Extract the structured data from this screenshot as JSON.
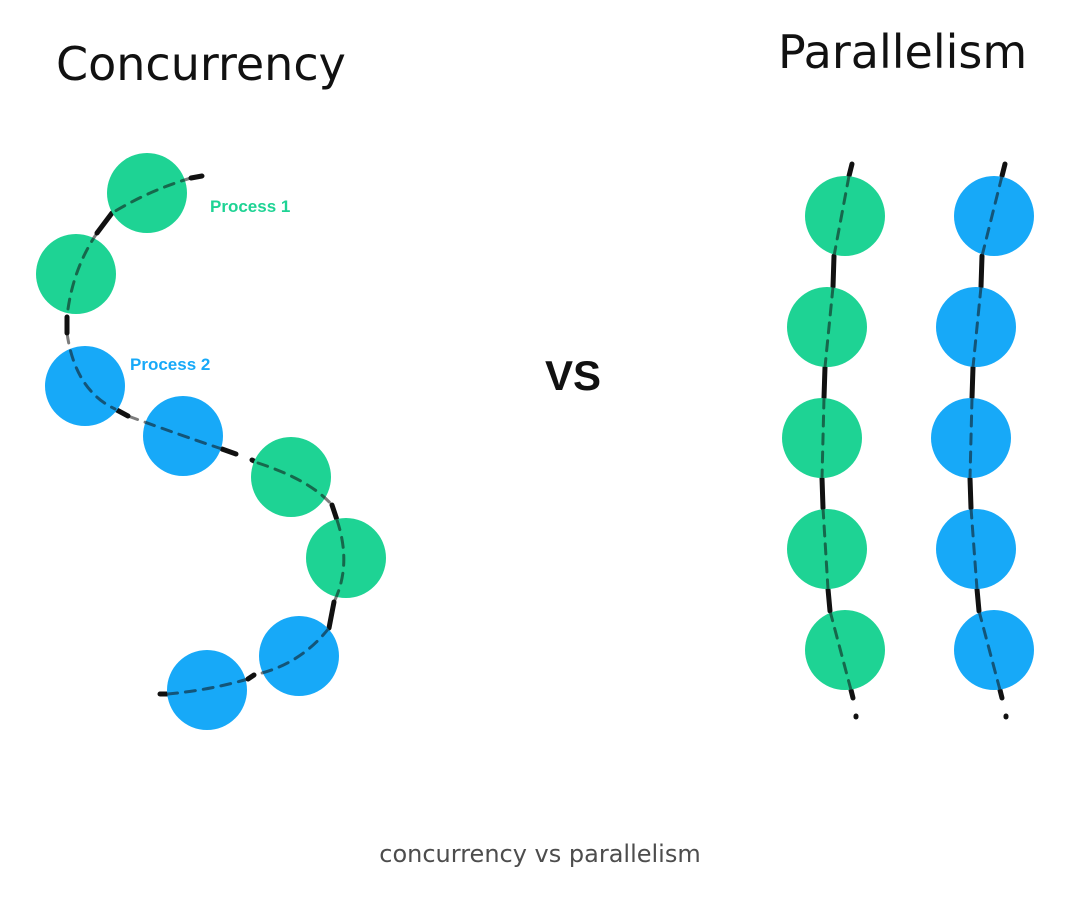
{
  "titles": {
    "left": "Concurrency",
    "right": "Parallelism"
  },
  "labels": {
    "process1": "Process 1",
    "process2": "Process 2",
    "vs": "VS"
  },
  "caption": "concurrency vs parallelism",
  "colors": {
    "process1": "#1ed394",
    "process2": "#17a9f8",
    "thread_line": "#111111",
    "title": "#111111",
    "caption": "#4d4d4d"
  }
}
